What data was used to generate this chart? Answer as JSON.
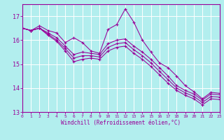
{
  "xlabel": "Windchill (Refroidissement éolien,°C)",
  "background_color": "#b2eeee",
  "line_color": "#990099",
  "ylim": [
    13,
    17.5
  ],
  "xlim": [
    0,
    23
  ],
  "yticks": [
    13,
    14,
    15,
    16,
    17
  ],
  "xticks": [
    0,
    1,
    2,
    3,
    4,
    5,
    6,
    7,
    8,
    9,
    10,
    11,
    12,
    13,
    14,
    15,
    16,
    17,
    18,
    19,
    20,
    21,
    22,
    23
  ],
  "series": [
    [
      16.5,
      16.4,
      16.6,
      16.4,
      16.3,
      15.9,
      16.1,
      15.9,
      15.55,
      15.45,
      16.45,
      16.65,
      17.3,
      16.75,
      16.0,
      15.5,
      15.05,
      14.85,
      14.5,
      14.1,
      13.85,
      13.55,
      13.82,
      13.78
    ],
    [
      16.5,
      16.4,
      16.5,
      16.3,
      16.1,
      15.75,
      15.4,
      15.5,
      15.45,
      15.4,
      15.85,
      16.0,
      16.05,
      15.75,
      15.5,
      15.2,
      14.85,
      14.5,
      14.1,
      13.9,
      13.75,
      13.5,
      13.75,
      13.72
    ],
    [
      16.5,
      16.4,
      16.5,
      16.25,
      16.0,
      15.65,
      15.25,
      15.35,
      15.35,
      15.3,
      15.7,
      15.85,
      15.9,
      15.6,
      15.35,
      15.05,
      14.7,
      14.35,
      14.0,
      13.8,
      13.65,
      13.4,
      13.65,
      13.62
    ],
    [
      16.5,
      16.4,
      16.5,
      16.2,
      15.95,
      15.55,
      15.1,
      15.2,
      15.25,
      15.2,
      15.55,
      15.7,
      15.75,
      15.45,
      15.2,
      14.9,
      14.55,
      14.2,
      13.9,
      13.7,
      13.55,
      13.3,
      13.55,
      13.52
    ]
  ]
}
